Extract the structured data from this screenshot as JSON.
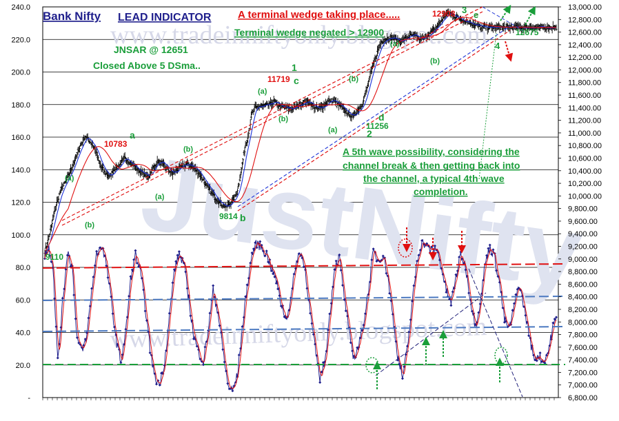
{
  "chart_data": {
    "type": "line",
    "title": "Bank Nifty",
    "subtitle": "LEAD INDICATOR",
    "watermark": "www.tradeinniftyonly.blogspot.com",
    "watermark_big": "JustNifty",
    "left_axis": {
      "ylim": [
        0,
        240
      ],
      "ticks": [
        "240.0",
        "220.0",
        "200.0",
        "180.0",
        "160.0",
        "140.0",
        "120.0",
        "100.0",
        "80.0",
        "60.0",
        "40.0",
        "20.0",
        "-"
      ]
    },
    "right_axis": {
      "ylim": [
        6800,
        13000
      ],
      "ticks": [
        "13,000.00",
        "12,800.00",
        "12,600.00",
        "12,400.00",
        "12,200.00",
        "12,000.00",
        "11,800.00",
        "11,600.00",
        "11,400.00",
        "11,200.00",
        "11,000.00",
        "10,800.00",
        "10,600.00",
        "10,400.00",
        "10,200.00",
        "10,000.00",
        "9,800.00",
        "9,600.00",
        "9,400.00",
        "9,200.00",
        "9,000.00",
        "8,800.00",
        "8,600.00",
        "8,400.00",
        "8,200.00",
        "8,000.00",
        "7,800.00",
        "7,600.00",
        "7,400.00",
        "7,200.00",
        "7,000.00",
        "6,800.00"
      ]
    },
    "price_keypoints": [
      [
        0,
        9110
      ],
      [
        4,
        9300
      ],
      [
        8,
        9500
      ],
      [
        14,
        9850
      ],
      [
        20,
        10100
      ],
      [
        27,
        10250
      ],
      [
        32,
        10400
      ],
      [
        38,
        10600
      ],
      [
        44,
        10800
      ],
      [
        50,
        10950
      ],
      [
        56,
        10860
      ],
      [
        62,
        10750
      ],
      [
        68,
        10500
      ],
      [
        74,
        10380
      ],
      [
        80,
        10300
      ],
      [
        86,
        10430
      ],
      [
        92,
        10480
      ],
      [
        98,
        10600
      ],
      [
        104,
        10550
      ],
      [
        110,
        10470
      ],
      [
        116,
        10400
      ],
      [
        122,
        10350
      ],
      [
        128,
        10300
      ],
      [
        134,
        10450
      ],
      [
        140,
        10550
      ],
      [
        146,
        10500
      ],
      [
        152,
        10420
      ],
      [
        158,
        10350
      ],
      [
        164,
        10420
      ],
      [
        170,
        10480
      ],
      [
        176,
        10500
      ],
      [
        182,
        10470
      ],
      [
        188,
        10400
      ],
      [
        194,
        10300
      ],
      [
        200,
        10150
      ],
      [
        206,
        10050
      ],
      [
        212,
        9950
      ],
      [
        218,
        9880
      ],
      [
        224,
        9814
      ],
      [
        230,
        9900
      ],
      [
        236,
        10000
      ],
      [
        240,
        10200
      ],
      [
        244,
        10500
      ],
      [
        248,
        10800
      ],
      [
        252,
        11000
      ],
      [
        256,
        11300
      ],
      [
        260,
        11400
      ],
      [
        266,
        11420
      ],
      [
        272,
        11430
      ],
      [
        278,
        11450
      ],
      [
        284,
        11500
      ],
      [
        290,
        11420
      ],
      [
        296,
        11400
      ],
      [
        302,
        11380
      ],
      [
        308,
        11400
      ],
      [
        314,
        11450
      ],
      [
        320,
        11480
      ],
      [
        326,
        11500
      ],
      [
        332,
        11420
      ],
      [
        338,
        11380
      ],
      [
        344,
        11420
      ],
      [
        350,
        11500
      ],
      [
        356,
        11520
      ],
      [
        362,
        11450
      ],
      [
        368,
        11380
      ],
      [
        374,
        11320
      ],
      [
        380,
        11256
      ],
      [
        386,
        11350
      ],
      [
        392,
        11450
      ],
      [
        398,
        11700
      ],
      [
        404,
        12000
      ],
      [
        410,
        12250
      ],
      [
        416,
        12450
      ],
      [
        422,
        12500
      ],
      [
        428,
        12520
      ],
      [
        434,
        12480
      ],
      [
        440,
        12450
      ],
      [
        446,
        12500
      ],
      [
        452,
        12550
      ],
      [
        458,
        12530
      ],
      [
        464,
        12480
      ],
      [
        470,
        12520
      ],
      [
        476,
        12580
      ],
      [
        482,
        12650
      ],
      [
        488,
        12750
      ],
      [
        494,
        12850
      ],
      [
        500,
        12908
      ],
      [
        506,
        12850
      ],
      [
        512,
        12820
      ],
      [
        518,
        12780
      ],
      [
        524,
        12760
      ],
      [
        530,
        12720
      ],
      [
        536,
        12700
      ],
      [
        540,
        12675
      ]
    ],
    "stochastic_keypoints": [
      [
        0,
        88
      ],
      [
        5,
        92
      ],
      [
        10,
        82
      ],
      [
        16,
        22
      ],
      [
        22,
        58
      ],
      [
        28,
        90
      ],
      [
        34,
        80
      ],
      [
        40,
        36
      ],
      [
        46,
        28
      ],
      [
        52,
        38
      ],
      [
        58,
        66
      ],
      [
        64,
        88
      ],
      [
        70,
        94
      ],
      [
        76,
        82
      ],
      [
        82,
        60
      ],
      [
        88,
        36
      ],
      [
        94,
        22
      ],
      [
        100,
        40
      ],
      [
        106,
        72
      ],
      [
        112,
        88
      ],
      [
        118,
        78
      ],
      [
        124,
        56
      ],
      [
        130,
        30
      ],
      [
        136,
        12
      ],
      [
        142,
        8
      ],
      [
        148,
        22
      ],
      [
        154,
        50
      ],
      [
        160,
        78
      ],
      [
        166,
        88
      ],
      [
        172,
        82
      ],
      [
        178,
        60
      ],
      [
        184,
        38
      ],
      [
        190,
        28
      ],
      [
        196,
        22
      ],
      [
        202,
        42
      ],
      [
        208,
        66
      ],
      [
        214,
        52
      ],
      [
        220,
        30
      ],
      [
        226,
        8
      ],
      [
        232,
        4
      ],
      [
        238,
        14
      ],
      [
        244,
        42
      ],
      [
        250,
        68
      ],
      [
        256,
        88
      ],
      [
        262,
        95
      ],
      [
        268,
        92
      ],
      [
        274,
        88
      ],
      [
        280,
        80
      ],
      [
        286,
        72
      ],
      [
        292,
        58
      ],
      [
        298,
        48
      ],
      [
        304,
        60
      ],
      [
        310,
        82
      ],
      [
        316,
        90
      ],
      [
        322,
        78
      ],
      [
        328,
        52
      ],
      [
        334,
        30
      ],
      [
        340,
        12
      ],
      [
        346,
        22
      ],
      [
        352,
        50
      ],
      [
        358,
        80
      ],
      [
        364,
        86
      ],
      [
        370,
        62
      ],
      [
        376,
        40
      ],
      [
        382,
        24
      ],
      [
        388,
        32
      ],
      [
        394,
        46
      ],
      [
        400,
        66
      ],
      [
        406,
        90
      ],
      [
        412,
        84
      ],
      [
        418,
        88
      ],
      [
        424,
        74
      ],
      [
        430,
        50
      ],
      [
        436,
        26
      ],
      [
        442,
        12
      ],
      [
        448,
        30
      ],
      [
        454,
        58
      ],
      [
        460,
        84
      ],
      [
        466,
        96
      ],
      [
        472,
        93
      ],
      [
        478,
        90
      ],
      [
        484,
        92
      ],
      [
        490,
        80
      ],
      [
        496,
        66
      ],
      [
        502,
        58
      ],
      [
        508,
        74
      ],
      [
        514,
        88
      ],
      [
        520,
        80
      ],
      [
        526,
        60
      ],
      [
        532,
        44
      ],
      [
        538,
        58
      ],
      [
        544,
        82
      ],
      [
        550,
        93
      ],
      [
        556,
        86
      ],
      [
        562,
        70
      ],
      [
        568,
        48
      ],
      [
        574,
        42
      ],
      [
        580,
        56
      ],
      [
        586,
        70
      ],
      [
        592,
        56
      ],
      [
        598,
        40
      ],
      [
        604,
        24
      ],
      [
        610,
        26
      ],
      [
        616,
        22
      ],
      [
        622,
        28
      ],
      [
        628,
        44
      ],
      [
        632,
        48
      ]
    ],
    "annotations": {
      "wedge": "A terminal  wedge taking place.....",
      "negated": "Terminal wedge negated > 12900",
      "jnsar": "JNSAR @ 12651",
      "closed": "Closed  Above 5 DSma..",
      "fifth_wave": [
        "A 5th wave possibility, considering the",
        "channel break & then getting back into",
        "the channel, a typical 4th wave",
        "completion."
      ],
      "p12908": "12908",
      "p12675": "12675",
      "p11719": "11719",
      "p10783": "10783",
      "p11256": "11256",
      "p9814": "9814",
      "p9110": "9110",
      "w1": "1",
      "w2": "2",
      "w3": "3",
      "w4": "4",
      "wa": "a",
      "wb": "b",
      "wc": "c",
      "wd": "d",
      "we": "e",
      "a_sub": "(a)",
      "b_sub": "(b)"
    }
  }
}
